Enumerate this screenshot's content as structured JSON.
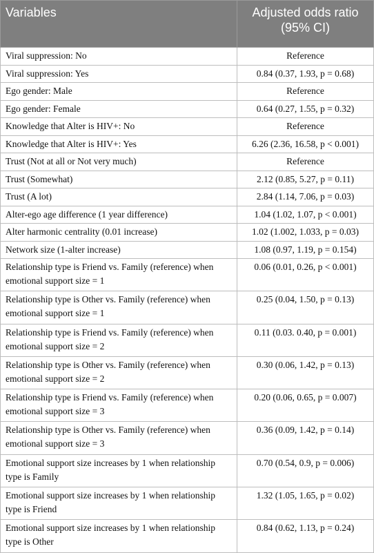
{
  "table": {
    "header": [
      "Variables",
      "Adjusted odds ratio (95% CI)"
    ],
    "rows": [
      [
        "Viral suppression: No",
        "Reference"
      ],
      [
        "Viral suppression: Yes",
        "0.84 (0.37, 1.93, p = 0.68)"
      ],
      [
        "Ego gender: Male",
        "Reference"
      ],
      [
        "Ego gender: Female",
        "0.64 (0.27, 1.55, p = 0.32)"
      ],
      [
        "Knowledge that Alter is HIV+: No",
        "Reference"
      ],
      [
        "Knowledge that Alter is HIV+: Yes",
        "6.26 (2.36, 16.58, p < 0.001)"
      ],
      [
        "Trust (Not at all or Not very much)",
        "Reference"
      ],
      [
        "Trust (Somewhat)",
        "2.12 (0.85, 5.27, p = 0.11)"
      ],
      [
        "Trust (A lot)",
        "2.84 (1.14, 7.06, p = 0.03)"
      ],
      [
        "Alter-ego age difference (1 year difference)",
        "1.04 (1.02, 1.07, p < 0.001)"
      ],
      [
        "Alter harmonic centrality (0.01 increase)",
        "1.02 (1.002, 1.033, p = 0.03)"
      ],
      [
        "Network size (1-alter increase)",
        "1.08 (0.97, 1.19, p = 0.154)"
      ],
      [
        "Relationship type is Friend vs. Family (reference) when emotional support size = 1",
        "0.06 (0.01, 0.26, p < 0.001)"
      ],
      [
        "Relationship type is Other vs. Family (reference) when emotional support size = 1",
        "0.25 (0.04, 1.50, p = 0.13)"
      ],
      [
        "Relationship type is Friend vs. Family (reference) when emotional support size = 2",
        "0.11 (0.03. 0.40, p = 0.001)"
      ],
      [
        "Relationship type is Other vs. Family (reference) when emotional support size = 2",
        "0.30 (0.06, 1.42, p = 0.13)"
      ],
      [
        "Relationship type is Friend vs. Family (reference) when emotional support size = 3",
        "0.20 (0.06, 0.65, p = 0.007)"
      ],
      [
        "Relationship type is Other vs. Family (reference) when emotional support size = 3",
        "0.36 (0.09, 1.42, p = 0.14)"
      ],
      [
        "Emotional support size increases by 1 when relationship type is Family",
        "0.70 (0.54, 0.9, p = 0.006)"
      ],
      [
        "Emotional support size increases by 1 when relationship type is Friend",
        "1.32 (1.05, 1.65, p = 0.02)"
      ],
      [
        "Emotional support size increases by 1 when relationship type is Other",
        "0.84 (0.62, 1.13, p = 0.24)"
      ]
    ]
  }
}
